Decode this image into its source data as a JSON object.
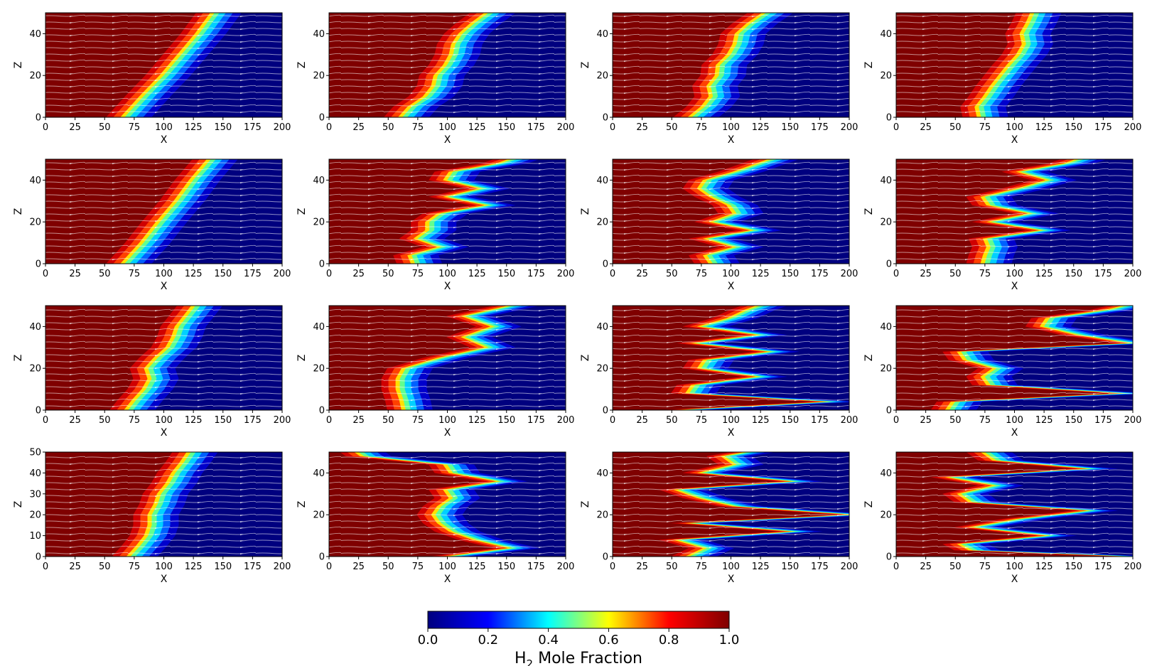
{
  "chart_data": {
    "type": "heatmap",
    "layout": {
      "rows": 4,
      "cols": 4
    },
    "overlay": "white streamlines",
    "colormap": {
      "name": "jet",
      "stops": [
        "#00007f",
        "#0000ff",
        "#00ffff",
        "#ffff00",
        "#ff0000",
        "#7f0000"
      ]
    },
    "colorbar": {
      "label_base": "H",
      "label_sub": "2",
      "label_rest": " Mole Fraction",
      "range": [
        0.0,
        1.0
      ],
      "tick_labels": [
        "0.0",
        "0.2",
        "0.4",
        "0.6",
        "0.8",
        "1.0"
      ]
    },
    "panels": [
      {
        "xlabel": "X",
        "ylabel": "Z",
        "xlim": [
          0,
          200
        ],
        "ylim": [
          0,
          50
        ],
        "x_tick_labels": [
          "0",
          "25",
          "50",
          "75",
          "100",
          "125",
          "150",
          "175",
          "200"
        ],
        "y_tick_labels": [
          "0",
          "20",
          "40"
        ],
        "front": {
          "z": [
            0,
            10,
            20,
            30,
            40,
            50
          ],
          "x": [
            62,
            78,
            95,
            110,
            125,
            138
          ]
        }
      },
      {
        "xlabel": "X",
        "ylabel": "Z",
        "xlim": [
          0,
          200
        ],
        "ylim": [
          0,
          50
        ],
        "x_tick_labels": [
          "0",
          "25",
          "50",
          "75",
          "100",
          "125",
          "150",
          "175",
          "200"
        ],
        "y_tick_labels": [
          "0",
          "20",
          "40"
        ],
        "front": {
          "z": [
            0,
            5,
            10,
            15,
            20,
            25,
            30,
            35,
            40,
            45,
            50
          ],
          "x": [
            57,
            65,
            78,
            85,
            87,
            95,
            100,
            102,
            108,
            118,
            130
          ]
        }
      },
      {
        "xlabel": "X",
        "ylabel": "Z",
        "xlim": [
          0,
          200
        ],
        "ylim": [
          0,
          50
        ],
        "x_tick_labels": [
          "0",
          "25",
          "50",
          "75",
          "100",
          "125",
          "150",
          "175",
          "200"
        ],
        "y_tick_labels": [
          "0",
          "20",
          "40"
        ],
        "front": {
          "z": [
            0,
            5,
            10,
            15,
            20,
            25,
            30,
            35,
            40,
            45,
            50
          ],
          "x": [
            62,
            73,
            80,
            78,
            85,
            86,
            95,
            100,
            102,
            112,
            125
          ]
        }
      },
      {
        "xlabel": "X",
        "ylabel": "Z",
        "xlim": [
          0,
          200
        ],
        "ylim": [
          0,
          50
        ],
        "x_tick_labels": [
          "0",
          "25",
          "50",
          "75",
          "100",
          "125",
          "150",
          "175",
          "200"
        ],
        "y_tick_labels": [
          "0",
          "20",
          "40"
        ],
        "front": {
          "z": [
            0,
            5,
            10,
            15,
            20,
            25,
            30,
            35,
            40,
            45,
            50
          ],
          "x": [
            67,
            65,
            72,
            78,
            85,
            92,
            100,
            105,
            103,
            108,
            112
          ]
        }
      },
      {
        "xlabel": "X",
        "ylabel": "Z",
        "xlim": [
          0,
          200
        ],
        "ylim": [
          0,
          50
        ],
        "x_tick_labels": [
          "0",
          "25",
          "50",
          "75",
          "100",
          "125",
          "150",
          "175",
          "200"
        ],
        "y_tick_labels": [
          "0",
          "20",
          "40"
        ],
        "front": {
          "z": [
            0,
            10,
            20,
            30,
            40,
            50
          ],
          "x": [
            62,
            78,
            92,
            107,
            120,
            135
          ]
        }
      },
      {
        "xlabel": "X",
        "ylabel": "Z",
        "xlim": [
          0,
          200
        ],
        "ylim": [
          0,
          50
        ],
        "x_tick_labels": [
          "0",
          "25",
          "50",
          "75",
          "100",
          "125",
          "150",
          "175",
          "200"
        ],
        "y_tick_labels": [
          "0",
          "20",
          "40"
        ],
        "front": {
          "z": [
            0,
            4,
            8,
            12,
            16,
            20,
            24,
            28,
            32,
            36,
            40,
            44,
            48,
            50
          ],
          "x": [
            68,
            65,
            90,
            70,
            80,
            80,
            90,
            130,
            95,
            125,
            95,
            100,
            140,
            150
          ]
        }
      },
      {
        "xlabel": "X",
        "ylabel": "Z",
        "xlim": [
          0,
          200
        ],
        "ylim": [
          0,
          50
        ],
        "x_tick_labels": [
          "0",
          "25",
          "50",
          "75",
          "100",
          "125",
          "150",
          "175",
          "200"
        ],
        "y_tick_labels": [
          "0",
          "20",
          "40"
        ],
        "front": {
          "z": [
            0,
            4,
            8,
            12,
            16,
            20,
            24,
            28,
            32,
            36,
            40,
            44,
            48,
            50
          ],
          "x": [
            80,
            75,
            100,
            75,
            115,
            80,
            100,
            95,
            80,
            70,
            75,
            100,
            120,
            130
          ]
        }
      },
      {
        "xlabel": "X",
        "ylabel": "Z",
        "xlim": [
          0,
          200
        ],
        "ylim": [
          0,
          50
        ],
        "x_tick_labels": [
          "0",
          "25",
          "50",
          "75",
          "100",
          "125",
          "150",
          "175",
          "200"
        ],
        "y_tick_labels": [
          "0",
          "20",
          "40"
        ],
        "front": {
          "z": [
            0,
            4,
            8,
            12,
            16,
            20,
            24,
            28,
            32,
            36,
            40,
            44,
            48,
            50
          ],
          "x": [
            70,
            72,
            75,
            72,
            120,
            75,
            110,
            75,
            70,
            100,
            125,
            100,
            140,
            150
          ]
        }
      },
      {
        "xlabel": "X",
        "ylabel": "Z",
        "xlim": [
          0,
          200
        ],
        "ylim": [
          0,
          50
        ],
        "x_tick_labels": [
          "0",
          "25",
          "50",
          "75",
          "100",
          "125",
          "150",
          "175",
          "200"
        ],
        "y_tick_labels": [
          "0",
          "20",
          "40"
        ],
        "front": {
          "z": [
            0,
            5,
            10,
            15,
            20,
            25,
            30,
            35,
            40,
            45,
            50
          ],
          "x": [
            65,
            72,
            80,
            85,
            82,
            90,
            100,
            105,
            108,
            115,
            122
          ]
        }
      },
      {
        "xlabel": "X",
        "ylabel": "Z",
        "xlim": [
          0,
          200
        ],
        "ylim": [
          0,
          50
        ],
        "x_tick_labels": [
          "0",
          "25",
          "50",
          "75",
          "100",
          "125",
          "150",
          "175",
          "200"
        ],
        "y_tick_labels": [
          "0",
          "20",
          "40"
        ],
        "front": {
          "z": [
            0,
            5,
            10,
            15,
            20,
            25,
            30,
            35,
            40,
            45,
            50
          ],
          "x": [
            60,
            58,
            55,
            55,
            60,
            90,
            130,
            110,
            135,
            110,
            150
          ]
        }
      },
      {
        "xlabel": "X",
        "ylabel": "Z",
        "xlim": [
          0,
          200
        ],
        "ylim": [
          0,
          50
        ],
        "x_tick_labels": [
          "0",
          "25",
          "50",
          "75",
          "100",
          "125",
          "150",
          "175",
          "200"
        ],
        "y_tick_labels": [
          "0",
          "20",
          "40"
        ],
        "front": {
          "z": [
            0,
            4,
            8,
            12,
            16,
            20,
            24,
            28,
            32,
            36,
            40,
            44,
            48,
            50
          ],
          "x": [
            50,
            180,
            60,
            65,
            120,
            70,
            75,
            130,
            65,
            120,
            70,
            95,
            110,
            120
          ]
        }
      },
      {
        "xlabel": "X",
        "ylabel": "Z",
        "xlim": [
          0,
          200
        ],
        "ylim": [
          0,
          50
        ],
        "x_tick_labels": [
          "0",
          "25",
          "50",
          "75",
          "100",
          "125",
          "150",
          "175",
          "200"
        ],
        "y_tick_labels": [
          "0",
          "20",
          "40"
        ],
        "front": {
          "z": [
            0,
            4,
            8,
            12,
            16,
            20,
            24,
            28,
            32,
            36,
            40,
            44,
            48,
            50
          ],
          "x": [
            40,
            45,
            190,
            75,
            70,
            80,
            55,
            50,
            195,
            150,
            120,
            125,
            175,
            190
          ]
        }
      },
      {
        "xlabel": "X",
        "ylabel": "Z",
        "xlim": [
          0,
          200
        ],
        "ylim": [
          0,
          50
        ],
        "x_tick_labels": [
          "0",
          "25",
          "50",
          "75",
          "100",
          "125",
          "150",
          "175",
          "200"
        ],
        "y_tick_labels": [
          "0",
          "10",
          "20",
          "30",
          "40",
          "50"
        ],
        "front": {
          "z": [
            0,
            5,
            10,
            15,
            20,
            25,
            30,
            35,
            40,
            45,
            50
          ],
          "x": [
            67,
            75,
            82,
            85,
            85,
            90,
            93,
            100,
            105,
            112,
            118
          ]
        }
      },
      {
        "xlabel": "X",
        "ylabel": "Z",
        "xlim": [
          0,
          200
        ],
        "ylim": [
          0,
          50
        ],
        "x_tick_labels": [
          "0",
          "25",
          "50",
          "75",
          "100",
          "125",
          "150",
          "175",
          "200"
        ],
        "y_tick_labels": [
          "0",
          "20",
          "40"
        ],
        "front": {
          "z": [
            0,
            4,
            8,
            12,
            16,
            20,
            24,
            28,
            32,
            36,
            40,
            44,
            48,
            50
          ],
          "x": [
            95,
            150,
            120,
            100,
            90,
            85,
            90,
            100,
            95,
            140,
            100,
            95,
            25,
            20
          ]
        }
      },
      {
        "xlabel": "X",
        "ylabel": "Z",
        "xlim": [
          0,
          200
        ],
        "ylim": [
          0,
          50
        ],
        "x_tick_labels": [
          "0",
          "25",
          "50",
          "75",
          "100",
          "125",
          "150",
          "175",
          "200"
        ],
        "y_tick_labels": [
          "0",
          "20",
          "40"
        ],
        "front": {
          "z": [
            0,
            4,
            8,
            12,
            16,
            20,
            24,
            28,
            32,
            36,
            40,
            44,
            48,
            50
          ],
          "x": [
            60,
            75,
            50,
            150,
            60,
            200,
            100,
            70,
            50,
            150,
            70,
            100,
            90,
            110
          ]
        }
      },
      {
        "xlabel": "X",
        "ylabel": "Z",
        "xlim": [
          0,
          200
        ],
        "ylim": [
          0,
          50
        ],
        "x_tick_labels": [
          "0",
          "25",
          "50",
          "75",
          "100",
          "125",
          "150",
          "175",
          "200"
        ],
        "y_tick_labels": [
          "0",
          "20",
          "40"
        ],
        "front": {
          "z": [
            0,
            3,
            6,
            10,
            14,
            18,
            22,
            26,
            30,
            34,
            38,
            42,
            46,
            50
          ],
          "x": [
            195,
            60,
            50,
            125,
            60,
            100,
            160,
            60,
            50,
            80,
            40,
            160,
            80,
            70
          ]
        }
      }
    ]
  }
}
